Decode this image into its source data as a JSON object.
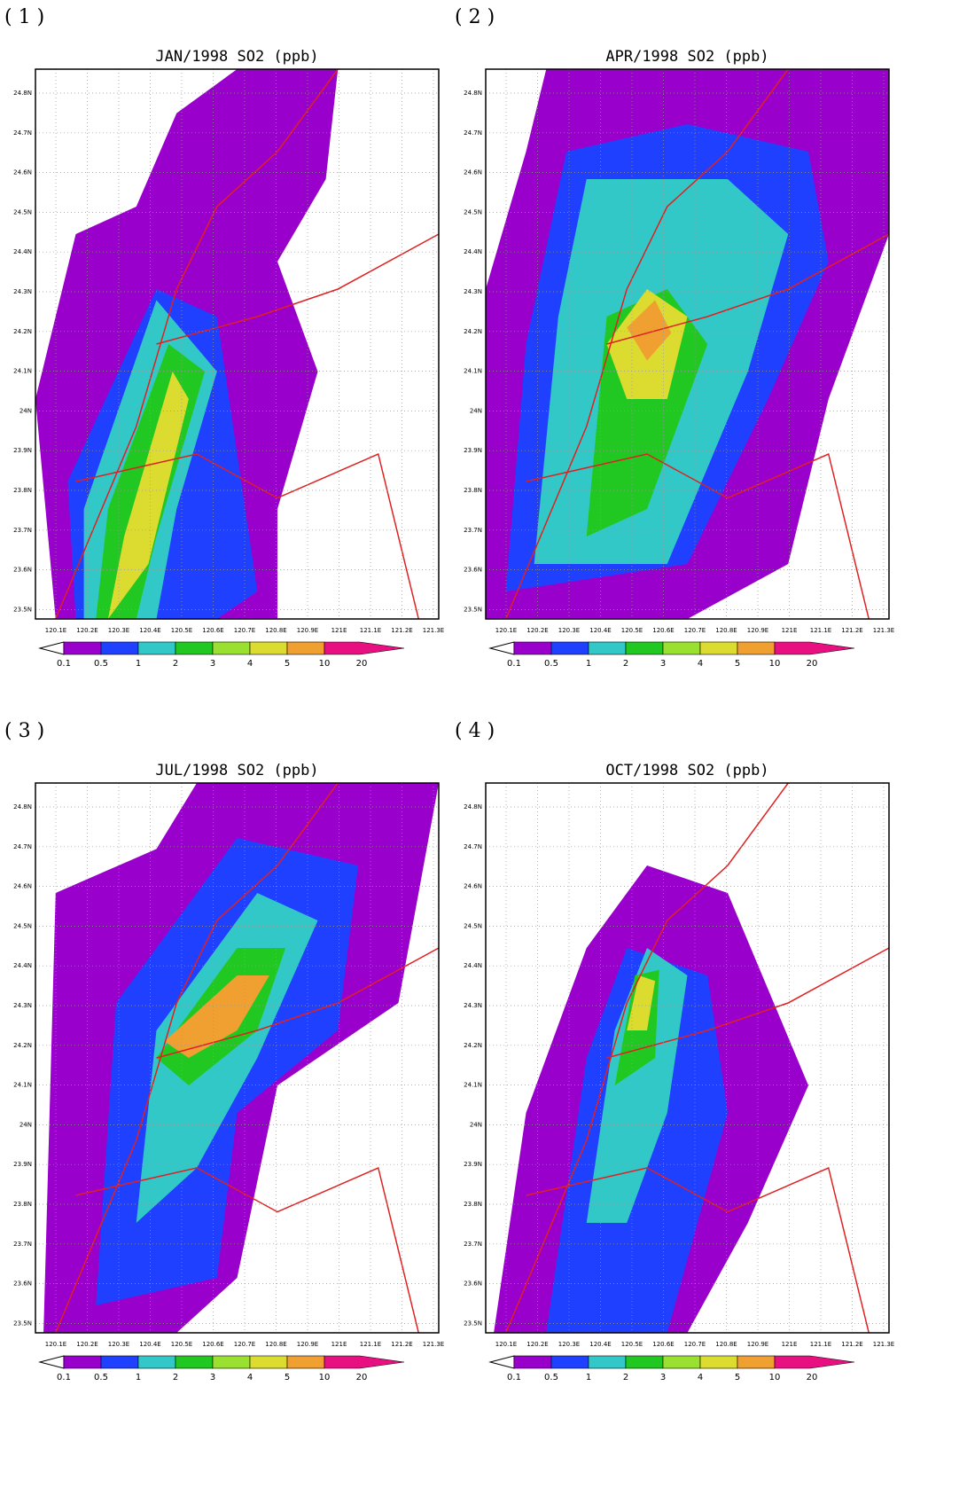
{
  "panels": [
    {
      "label": "( 1 )",
      "title": "JAN/1998 SO2 (ppb)"
    },
    {
      "label": "( 2 )",
      "title": "APR/1998 SO2 (ppb)"
    },
    {
      "label": "( 3 )",
      "title": "JUL/1998 SO2 (ppb)"
    },
    {
      "label": "( 4 )",
      "title": "OCT/1998 SO2 (ppb)"
    }
  ],
  "y_axis_labels": [
    "24.8N",
    "24.7N",
    "24.6N",
    "24.5N",
    "24.4N",
    "24.3N",
    "24.2N",
    "24.1N",
    "24N",
    "23.9N",
    "23.8N",
    "23.7N",
    "23.6N",
    "23.5N"
  ],
  "x_axis_labels": [
    "120.1E",
    "120.2E",
    "120.3E",
    "120.4E",
    "120.5E",
    "120.6E",
    "120.7E",
    "120.8E",
    "120.9E",
    "121E",
    "121.1E",
    "121.2E",
    "121.3E"
  ],
  "colorbar": {
    "labels": [
      "0.1",
      "0.5",
      "1",
      "2",
      "3",
      "4",
      "5",
      "10",
      "20"
    ],
    "colors": [
      "#ffffff",
      "#9a00cc",
      "#2040ff",
      "#33c8c8",
      "#22c822",
      "#9ae030",
      "#dcdc30",
      "#f0a030",
      "#e81080"
    ]
  }
}
